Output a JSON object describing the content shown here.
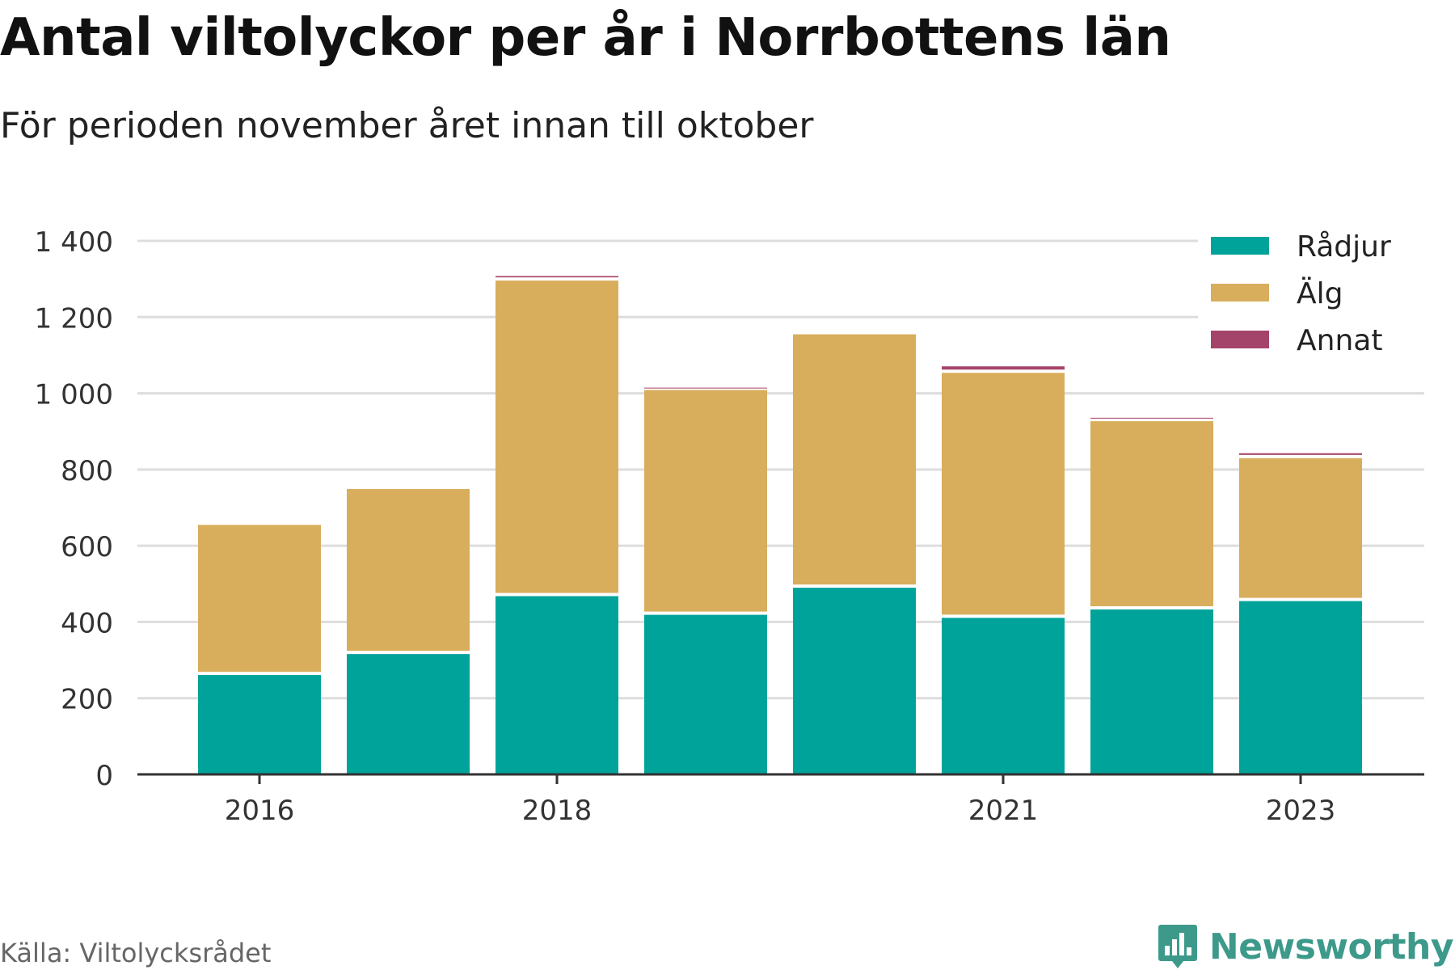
{
  "header": {
    "title": "Antal viltolyckor per år i Norrbottens län",
    "subtitle": "För perioden november året innan till oktober"
  },
  "footer": {
    "source": "Källa: Viltolycksrådet",
    "brand": "Newsworthy",
    "brand_icon": "bar-chart-speech-bubble-icon"
  },
  "colors": {
    "radjur": "#00a39a",
    "alg": "#d8ad5c",
    "annat": "#a5446a",
    "grid": "#dddddd",
    "axis": "#333333",
    "brand": "#3d9a8b"
  },
  "chart_data": {
    "type": "bar",
    "stacked": true,
    "categories": [
      "2016",
      "2017",
      "2018",
      "2019",
      "2020",
      "2021",
      "2022",
      "2023"
    ],
    "x_tick_labels": [
      "2016",
      "",
      "2018",
      "",
      "",
      "2021",
      "",
      "2023"
    ],
    "series": [
      {
        "name": "Rådjur",
        "values": [
          265,
          320,
          472,
          423,
          494,
          415,
          437,
          459
        ]
      },
      {
        "name": "Älg",
        "values": [
          394,
          433,
          828,
          590,
          665,
          643,
          494,
          375
        ]
      },
      {
        "name": "Annat",
        "values": [
          0,
          0,
          12,
          6,
          0,
          17,
          9,
          13
        ]
      }
    ],
    "ylim": [
      0,
      1400
    ],
    "yticks": [
      0,
      200,
      400,
      600,
      800,
      1000,
      1200,
      1400
    ],
    "ytick_labels": [
      "0",
      "200",
      "400",
      "600",
      "800",
      "1 000",
      "1 200",
      "1 400"
    ],
    "grid": true,
    "legend_position": "top-right"
  }
}
